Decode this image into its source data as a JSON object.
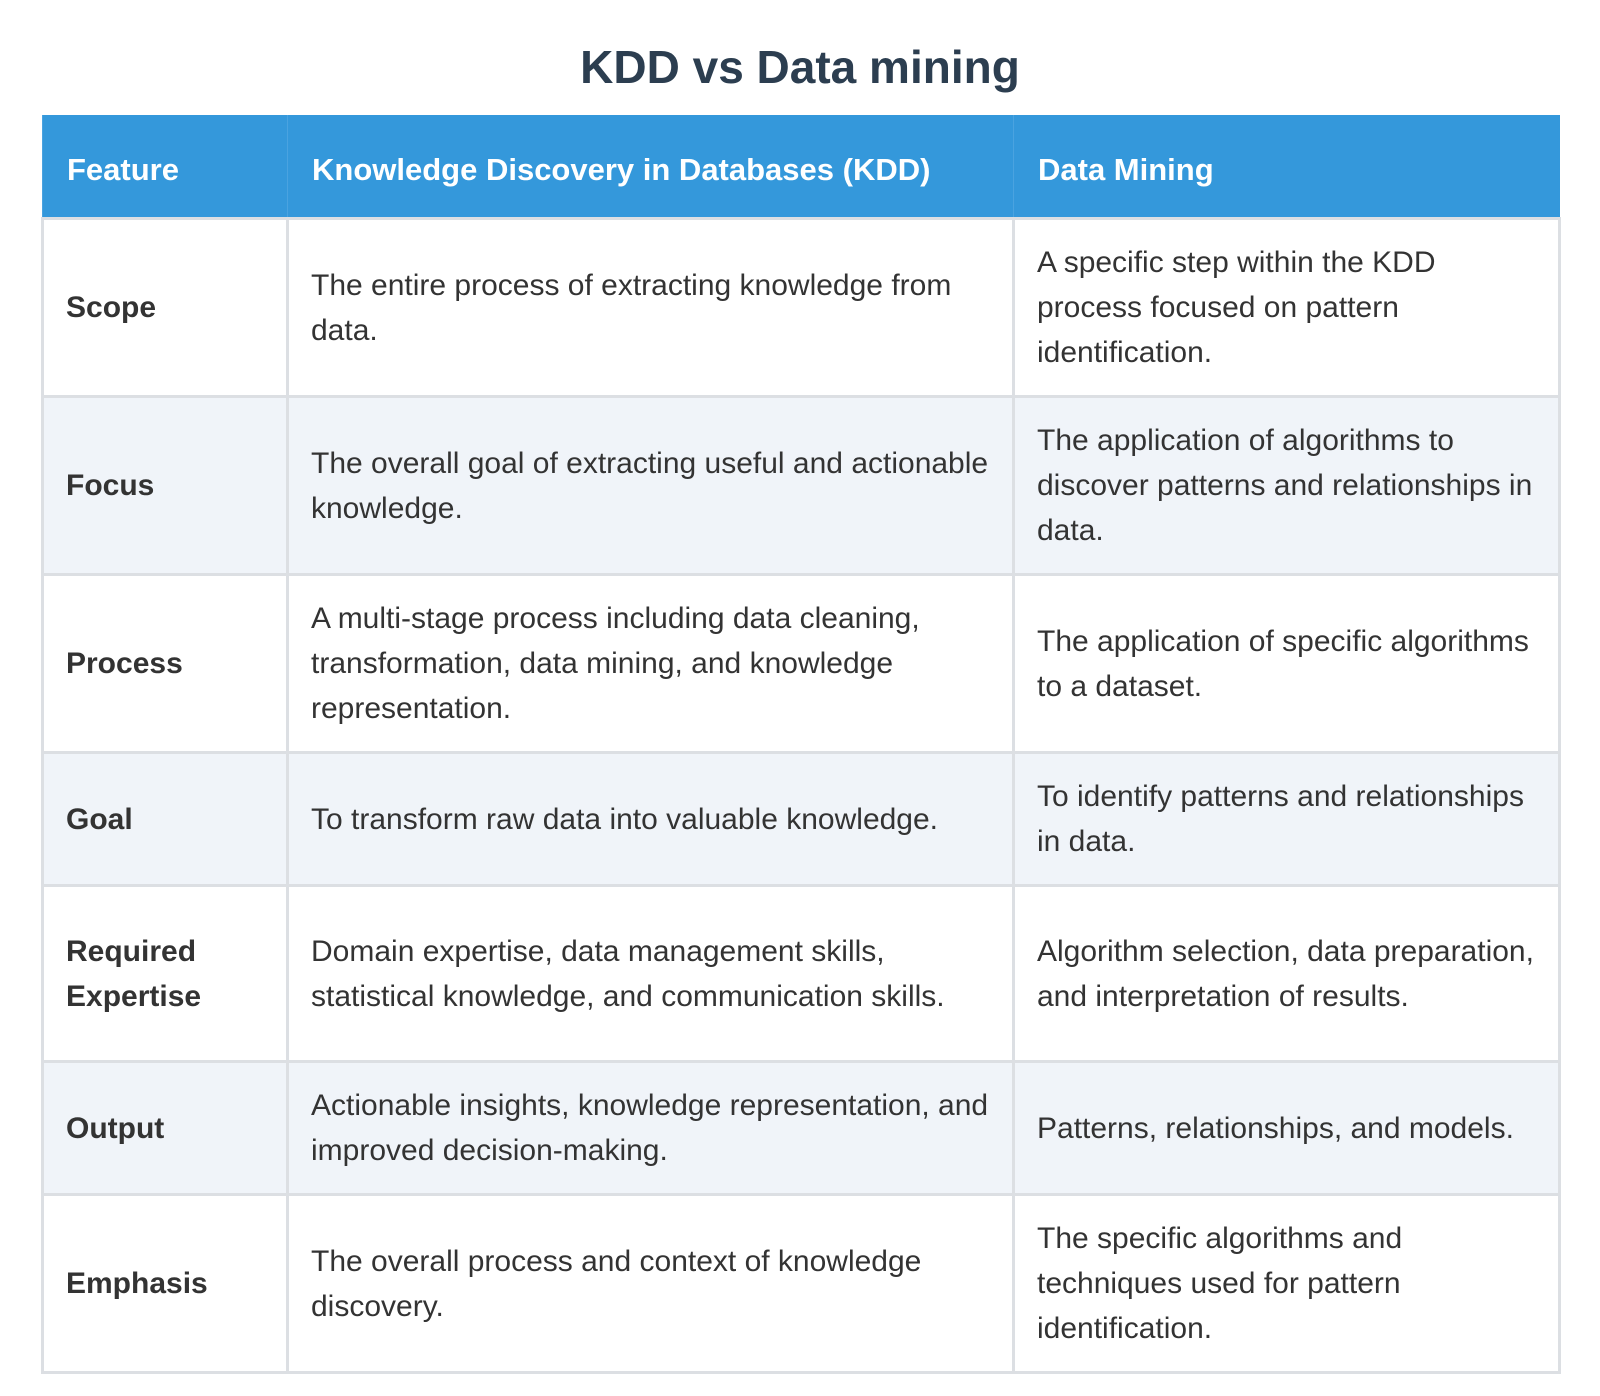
{
  "header": {
    "title": "KDD vs Data mining"
  },
  "table": {
    "columns": [
      "Feature",
      "Knowledge Discovery in Databases (KDD)",
      "Data Mining"
    ],
    "rows": [
      [
        "Scope",
        "The entire process of extracting knowledge from data.",
        "A specific step within the KDD process focused on pattern identification."
      ],
      [
        "Focus",
        "The overall goal of extracting useful and actionable knowledge.",
        "The application of algorithms to discover patterns and relationships in data."
      ],
      [
        "Process",
        "A multi-stage process including data cleaning, transformation, data mining, and knowledge representation.",
        "The application of specific algorithms to a dataset."
      ],
      [
        "Goal",
        "To transform raw data into valuable knowledge.",
        "To identify patterns and relationships in data."
      ],
      [
        "Required Expertise",
        "Domain expertise, data management skills, statistical knowledge, and communication skills.",
        "Algorithm selection, data preparation, and interpretation of results."
      ],
      [
        "Output",
        "Actionable insights, knowledge representation, and improved decision-making.",
        "Patterns, relationships, and models."
      ],
      [
        "Emphasis",
        "The overall process and context of knowledge discovery.",
        "The specific algorithms and techniques used for pattern identification."
      ]
    ]
  }
}
